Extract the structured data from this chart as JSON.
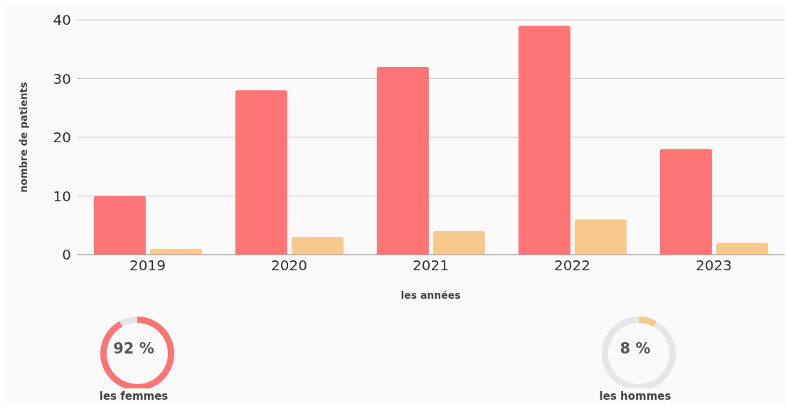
{
  "chart_data": [
    {
      "type": "bar",
      "xlabel": "les années",
      "ylabel": "nombre de patients",
      "categories": [
        "2019",
        "2020",
        "2021",
        "2022",
        "2023"
      ],
      "series": [
        {
          "color": "#ff7575",
          "values": [
            10,
            28,
            32,
            39,
            18
          ]
        },
        {
          "color": "#f7c98c",
          "values": [
            1,
            3,
            4,
            6,
            2
          ]
        }
      ],
      "ylim": [
        0,
        40
      ],
      "yticks": [
        0,
        10,
        20,
        30,
        40
      ],
      "grid": "y"
    },
    {
      "type": "donut",
      "title": "les femmes",
      "categories": [
        null,
        null
      ],
      "values": [
        92,
        8
      ],
      "colors": [
        "#ff7575",
        "#e6e6e6"
      ],
      "annotations": [
        "92 %"
      ]
    },
    {
      "type": "donut",
      "title": "les hommes",
      "categories": [
        null,
        null
      ],
      "values": [
        8,
        92
      ],
      "colors": [
        "#f7c98c",
        "#e6e6e6"
      ],
      "annotations": [
        "8 %"
      ]
    }
  ]
}
